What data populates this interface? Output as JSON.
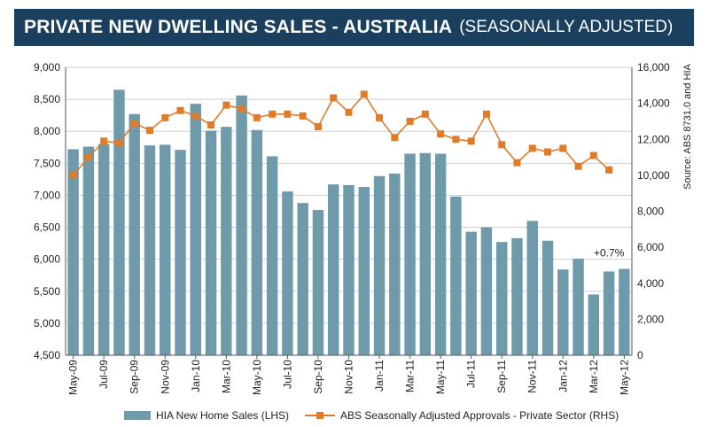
{
  "header": {
    "title": "PRIVATE NEW DWELLING SALES -  AUSTRALIA",
    "subtitle": "(SEASONALLY ADJUSTED)"
  },
  "source_note": "Source: ABS 8731.0 and HIA",
  "legend": {
    "bar_label": "HIA New Home Sales (LHS)",
    "line_label": "ABS Seasonally Adjusted Approvals - Private Sector (RHS)"
  },
  "colors": {
    "bar": "#6f9aaa",
    "line": "#e07b2a",
    "title_bg": "#1a3f5f",
    "grid": "#cfcfcf"
  },
  "chart_data": {
    "type": "bar",
    "months": [
      "May-09",
      "Jun-09",
      "Jul-09",
      "Aug-09",
      "Sep-09",
      "Oct-09",
      "Nov-09",
      "Dec-09",
      "Jan-10",
      "Feb-10",
      "Mar-10",
      "Apr-10",
      "May-10",
      "Jun-10",
      "Jul-10",
      "Aug-10",
      "Sep-10",
      "Oct-10",
      "Nov-10",
      "Dec-10",
      "Jan-11",
      "Feb-11",
      "Mar-11",
      "Apr-11",
      "May-11",
      "Jun-11",
      "Jul-11",
      "Aug-11",
      "Sep-11",
      "Oct-11",
      "Nov-11",
      "Dec-11",
      "Jan-12",
      "Feb-12",
      "Mar-12",
      "Apr-12",
      "May-12"
    ],
    "x_tick_labels": [
      "May-09",
      "Jul-09",
      "Sep-09",
      "Nov-09",
      "Jan-10",
      "Mar-10",
      "May-10",
      "Jul-10",
      "Sep-10",
      "Nov-10",
      "Jan-11",
      "Mar-11",
      "May-11",
      "Jul-11",
      "Sep-11",
      "Nov-11",
      "Jan-12",
      "Mar-12",
      "May-12"
    ],
    "series": [
      {
        "name": "HIA New Home Sales (LHS)",
        "type": "bar",
        "axis": "left",
        "values": [
          7720,
          7760,
          7800,
          8650,
          8270,
          7780,
          7790,
          7710,
          8430,
          8010,
          8070,
          8560,
          8020,
          7610,
          7060,
          6880,
          6770,
          7170,
          7160,
          7130,
          7300,
          7340,
          7650,
          7660,
          7650,
          6980,
          6430,
          6500,
          6270,
          6330,
          6600,
          6290,
          5840,
          6010,
          5450,
          5810,
          5850
        ]
      },
      {
        "name": "ABS Seasonally Adjusted Approvals - Private Sector (RHS)",
        "type": "line",
        "axis": "right",
        "values": [
          10000,
          11000,
          11900,
          11800,
          12900,
          12500,
          13200,
          13600,
          13300,
          12800,
          13900,
          13700,
          13200,
          13400,
          13400,
          13300,
          12700,
          14300,
          13500,
          14500,
          13200,
          12100,
          13000,
          13400,
          12300,
          12000,
          11900,
          13400,
          11700,
          10700,
          11500,
          11300,
          11500,
          10500,
          11100,
          10300,
          null
        ]
      }
    ],
    "y_left": {
      "min": 4500,
      "max": 9000,
      "step": 500,
      "ticks": [
        "4,500",
        "5,000",
        "5,500",
        "6,000",
        "6,500",
        "7,000",
        "7,500",
        "8,000",
        "8,500",
        "9,000"
      ]
    },
    "y_right": {
      "min": 0,
      "max": 16000,
      "step": 2000,
      "ticks": [
        "0",
        "2,000",
        "4,000",
        "6,000",
        "8,000",
        "10,000",
        "12,000",
        "14,000",
        "16,000"
      ]
    },
    "annotation": {
      "text": "+0.7%",
      "month": "May-12"
    },
    "grid": true,
    "legend_position": "bottom"
  }
}
